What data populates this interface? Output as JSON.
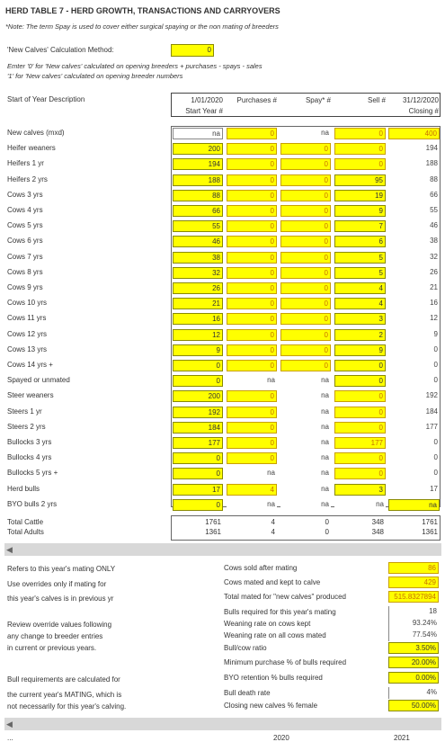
{
  "title": "HERD TABLE 7 - HERD GROWTH, TRANSACTIONS AND CARRYOVERS",
  "note": "*Note: The term Spay is used to cover either surgical spaying or the non mating of breeders",
  "method": {
    "label": "'New Calves' Calculation Method:",
    "value": "0",
    "help1": "Emter '0' for 'New calves' calculated on opening breeders + purchases - spays - sales",
    "help2": "'1' for 'New calves' calculated on opening breeder numbers"
  },
  "table_header": {
    "description": "Start of Year Description",
    "col_start_1": "1/01/2020",
    "col_start_2": "Start Year #",
    "col_purchases": "Purchases #",
    "col_spay": "Spay* #",
    "col_sell": "Sell #",
    "col_closing_1": "31/12/2020",
    "col_closing_2": "Closing #"
  },
  "rows": [
    {
      "label": "New calves (mxd)",
      "start": "na",
      "purchases": "0",
      "spay": "na",
      "sell": "0",
      "closing": "400"
    },
    {
      "label": "Heifer weaners",
      "start": "200",
      "purchases": "0",
      "spay": "0",
      "sell": "0",
      "closing": "194"
    },
    {
      "label": "Heifers 1 yr",
      "start": "194",
      "purchases": "0",
      "spay": "0",
      "sell": "0",
      "closing": "188"
    },
    {
      "label": "Heifers 2 yrs",
      "start": "188",
      "purchases": "0",
      "spay": "0",
      "sell": "95",
      "closing": "88"
    },
    {
      "label": "Cows 3 yrs",
      "start": "88",
      "purchases": "0",
      "spay": "0",
      "sell": "19",
      "closing": "66"
    },
    {
      "label": "Cows 4 yrs",
      "start": "66",
      "purchases": "0",
      "spay": "0",
      "sell": "9",
      "closing": "55"
    },
    {
      "label": "Cows 5 yrs",
      "start": "55",
      "purchases": "0",
      "spay": "0",
      "sell": "7",
      "closing": "46"
    },
    {
      "label": "Cows 6 yrs",
      "start": "46",
      "purchases": "0",
      "spay": "0",
      "sell": "6",
      "closing": "38"
    },
    {
      "label": "Cows 7 yrs",
      "start": "38",
      "purchases": "0",
      "spay": "0",
      "sell": "5",
      "closing": "32"
    },
    {
      "label": "Cows 8 yrs",
      "start": "32",
      "purchases": "0",
      "spay": "0",
      "sell": "5",
      "closing": "26"
    },
    {
      "label": "Cows 9 yrs",
      "start": "26",
      "purchases": "0",
      "spay": "0",
      "sell": "4",
      "closing": "21"
    },
    {
      "label": "Cows 10 yrs",
      "start": "21",
      "purchases": "0",
      "spay": "0",
      "sell": "4",
      "closing": "16"
    },
    {
      "label": "Cows 11 yrs",
      "start": "16",
      "purchases": "0",
      "spay": "0",
      "sell": "3",
      "closing": "12"
    },
    {
      "label": "Cows 12 yrs",
      "start": "12",
      "purchases": "0",
      "spay": "0",
      "sell": "2",
      "closing": "9"
    },
    {
      "label": "Cows 13 yrs",
      "start": "9",
      "purchases": "0",
      "spay": "0",
      "sell": "9",
      "closing": "0"
    },
    {
      "label": "Cows 14 yrs +",
      "start": "0",
      "purchases": "0",
      "spay": "0",
      "sell": "0",
      "closing": "0"
    },
    {
      "label": "Spayed or unmated",
      "start": "0",
      "purchases": "na",
      "spay": "na",
      "sell": "0",
      "closing": "0"
    },
    {
      "label": "Steer weaners",
      "start": "200",
      "purchases": "0",
      "spay": "na",
      "sell": "0",
      "closing": "192"
    },
    {
      "label": "Steers 1 yr",
      "start": "192",
      "purchases": "0",
      "spay": "na",
      "sell": "0",
      "closing": "184"
    },
    {
      "label": "Steers 2 yrs",
      "start": "184",
      "purchases": "0",
      "spay": "na",
      "sell": "0",
      "closing": "177"
    },
    {
      "label": "Bullocks 3 yrs",
      "start": "177",
      "purchases": "0",
      "spay": "na",
      "sell": "177",
      "closing": "0"
    },
    {
      "label": "Bullocks 4 yrs",
      "start": "0",
      "purchases": "0",
      "spay": "na",
      "sell": "0",
      "closing": "0"
    },
    {
      "label": "Bullocks 5 yrs +",
      "start": "0",
      "purchases": "na",
      "spay": "na",
      "sell": "0",
      "closing": "0"
    },
    {
      "label": "Herd bulls",
      "start": "17",
      "purchases": "4",
      "spay": "na",
      "sell": "3",
      "closing": "17"
    },
    {
      "label": "BYO bulls 2 yrs",
      "start": "0",
      "purchases": "na",
      "spay": "na",
      "sell": "na",
      "closing": "na"
    }
  ],
  "totals": [
    {
      "label": "Total Cattle",
      "start": "1761",
      "purchases": "4",
      "spay": "0",
      "sell": "348",
      "closing": "1761"
    },
    {
      "label": "Total Adults",
      "start": "1361",
      "purchases": "4",
      "spay": "0",
      "sell": "348",
      "closing": "1361"
    }
  ],
  "notes_left": [
    "Refers to this year's mating ONLY",
    "Use overrides only if mating for",
    "this year's calves is in previous yr",
    "Review override values following",
    "any change to breeder entries",
    "in current or previous years.",
    "Bull requirements are calculated for",
    "the current year's MATING, which is",
    "not necessarily for this year's calving."
  ],
  "mating": [
    {
      "label": "Cows sold after mating",
      "value": "86"
    },
    {
      "label": "Cows mated and kept to calve",
      "value": "429"
    },
    {
      "label": "Total mated for \"new calves\" produced",
      "value": "515.8327894"
    },
    {
      "label": "Bulls required for this year's mating",
      "value": "18"
    },
    {
      "label": "Weaning rate on cows kept",
      "value": "93.24%"
    },
    {
      "label": "Weaning rate on all cows mated",
      "value": "77.54%"
    },
    {
      "label": "Bull/cow ratio",
      "value": "3.50%"
    },
    {
      "label": "Minimum purchase % of bulls required",
      "value": "20.00%"
    },
    {
      "label": "BYO retention % bulls required",
      "value": "0.00%"
    },
    {
      "label": "Bull death rate",
      "value": "4%"
    },
    {
      "label": "Closing new calves % female",
      "value": "50.00%"
    }
  ],
  "footer_partial": {
    "left": "...",
    "mid": "2020",
    "right": "2021"
  },
  "scroll_arrow": "◀"
}
